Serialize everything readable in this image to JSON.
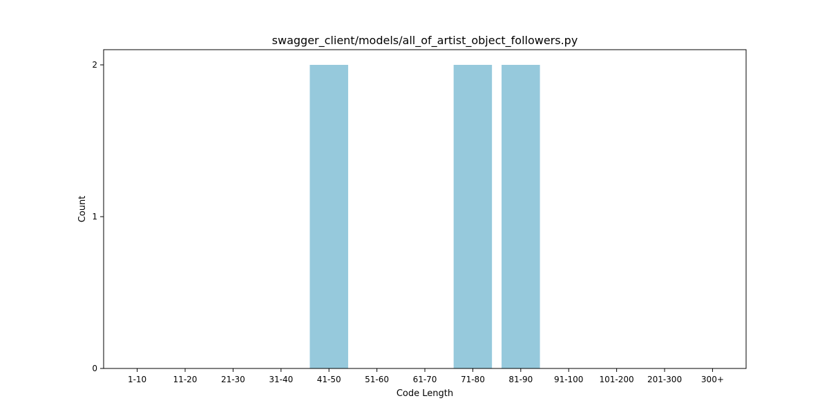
{
  "colors": {
    "bar": "#96c9dc",
    "axis": "#000000",
    "background": "#ffffff"
  },
  "chart_data": {
    "type": "bar",
    "title": "swagger_client/models/all_of_artist_object_followers.py",
    "xlabel": "Code Length",
    "ylabel": "Count",
    "categories": [
      "1-10",
      "11-20",
      "21-30",
      "31-40",
      "41-50",
      "51-60",
      "61-70",
      "71-80",
      "81-90",
      "91-100",
      "101-200",
      "201-300",
      "300+"
    ],
    "values": [
      0,
      0,
      0,
      0,
      2,
      0,
      0,
      2,
      2,
      0,
      0,
      0,
      0
    ],
    "ylim": [
      0,
      2.1
    ],
    "yticks": [
      0,
      1,
      2
    ],
    "grid": false,
    "legend": "none"
  }
}
